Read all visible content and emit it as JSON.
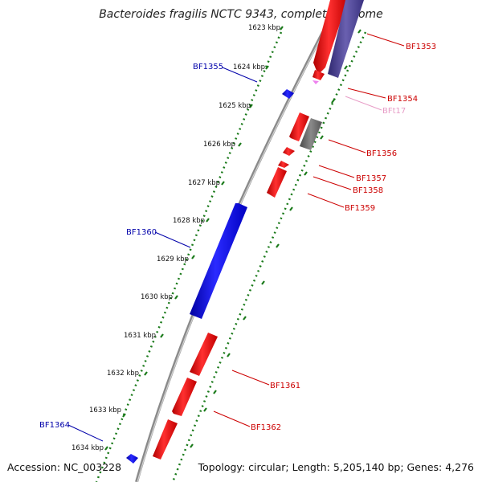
{
  "title": "Bacteroides fragilis NCTC 9343, complete genome",
  "footer": {
    "accession": "Accession: NC_003228",
    "topology": "Topology: circular; Length: 5,205,140 bp; Genes: 4,276"
  },
  "kbp_labels": [
    "1623 kbp",
    "1624 kbp",
    "1625 kbp",
    "1626 kbp",
    "1627 kbp",
    "1628 kbp",
    "1629 kbp",
    "1630 kbp",
    "1631 kbp",
    "1632 kbp",
    "1633 kbp",
    "1634 kbp"
  ],
  "genes": {
    "BF1353": {
      "label": "BF1353",
      "color": "#cc0000"
    },
    "BF1354": {
      "label": "BF1354",
      "color": "#cc0000"
    },
    "BFt17": {
      "label": "BFt17",
      "color": "#e79bc6"
    },
    "BF1355": {
      "label": "BF1355",
      "color": "#0000aa"
    },
    "BF1356": {
      "label": "BF1356",
      "color": "#cc0000"
    },
    "BF1357": {
      "label": "BF1357",
      "color": "#cc0000"
    },
    "BF1358": {
      "label": "BF1358",
      "color": "#cc0000"
    },
    "BF1359": {
      "label": "BF1359",
      "color": "#cc0000"
    },
    "BF1360": {
      "label": "BF1360",
      "color": "#0000aa"
    },
    "BF1361": {
      "label": "BF1361",
      "color": "#cc0000"
    },
    "BF1362": {
      "label": "BF1362",
      "color": "#cc0000"
    },
    "BF1364": {
      "label": "BF1364",
      "color": "#0000aa"
    }
  },
  "colors": {
    "forward_strand": "#ff0000",
    "reverse_strand": "#0000ff",
    "trna": "#ee82ee",
    "rrna": "#4a3f8f",
    "pseudo": "#6f6f6f",
    "tick_dots": "#1a7a1a"
  }
}
